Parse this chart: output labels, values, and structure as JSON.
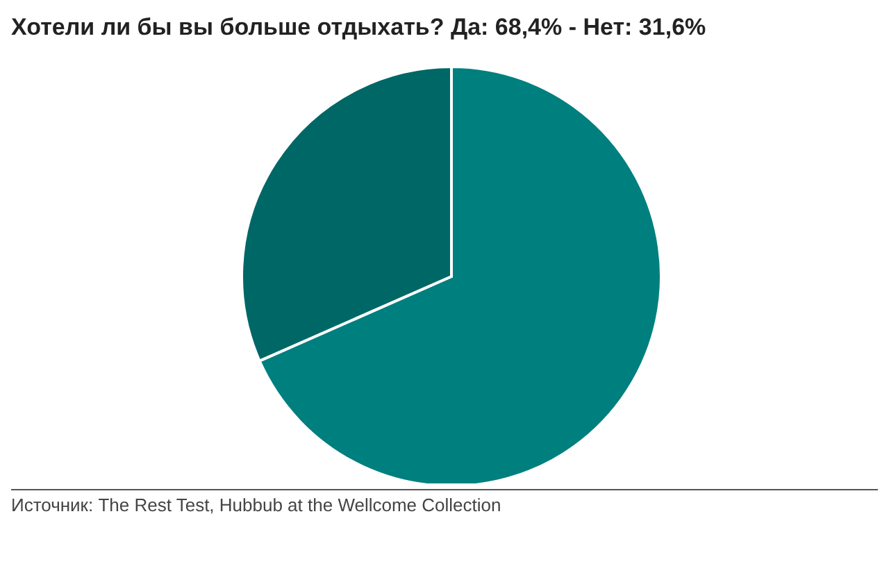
{
  "chart_data": {
    "type": "pie",
    "title": "Хотели ли бы вы больше отдыхать? Да: 68,4% - Нет: 31,6%",
    "categories": [
      null,
      null
    ],
    "values": [
      68.4,
      31.6
    ],
    "colors": [
      "#007f7f",
      "#006767"
    ],
    "annotations": [
      "Источник: The Rest Test, Hubbub at the Wellcome Collection"
    ]
  }
}
